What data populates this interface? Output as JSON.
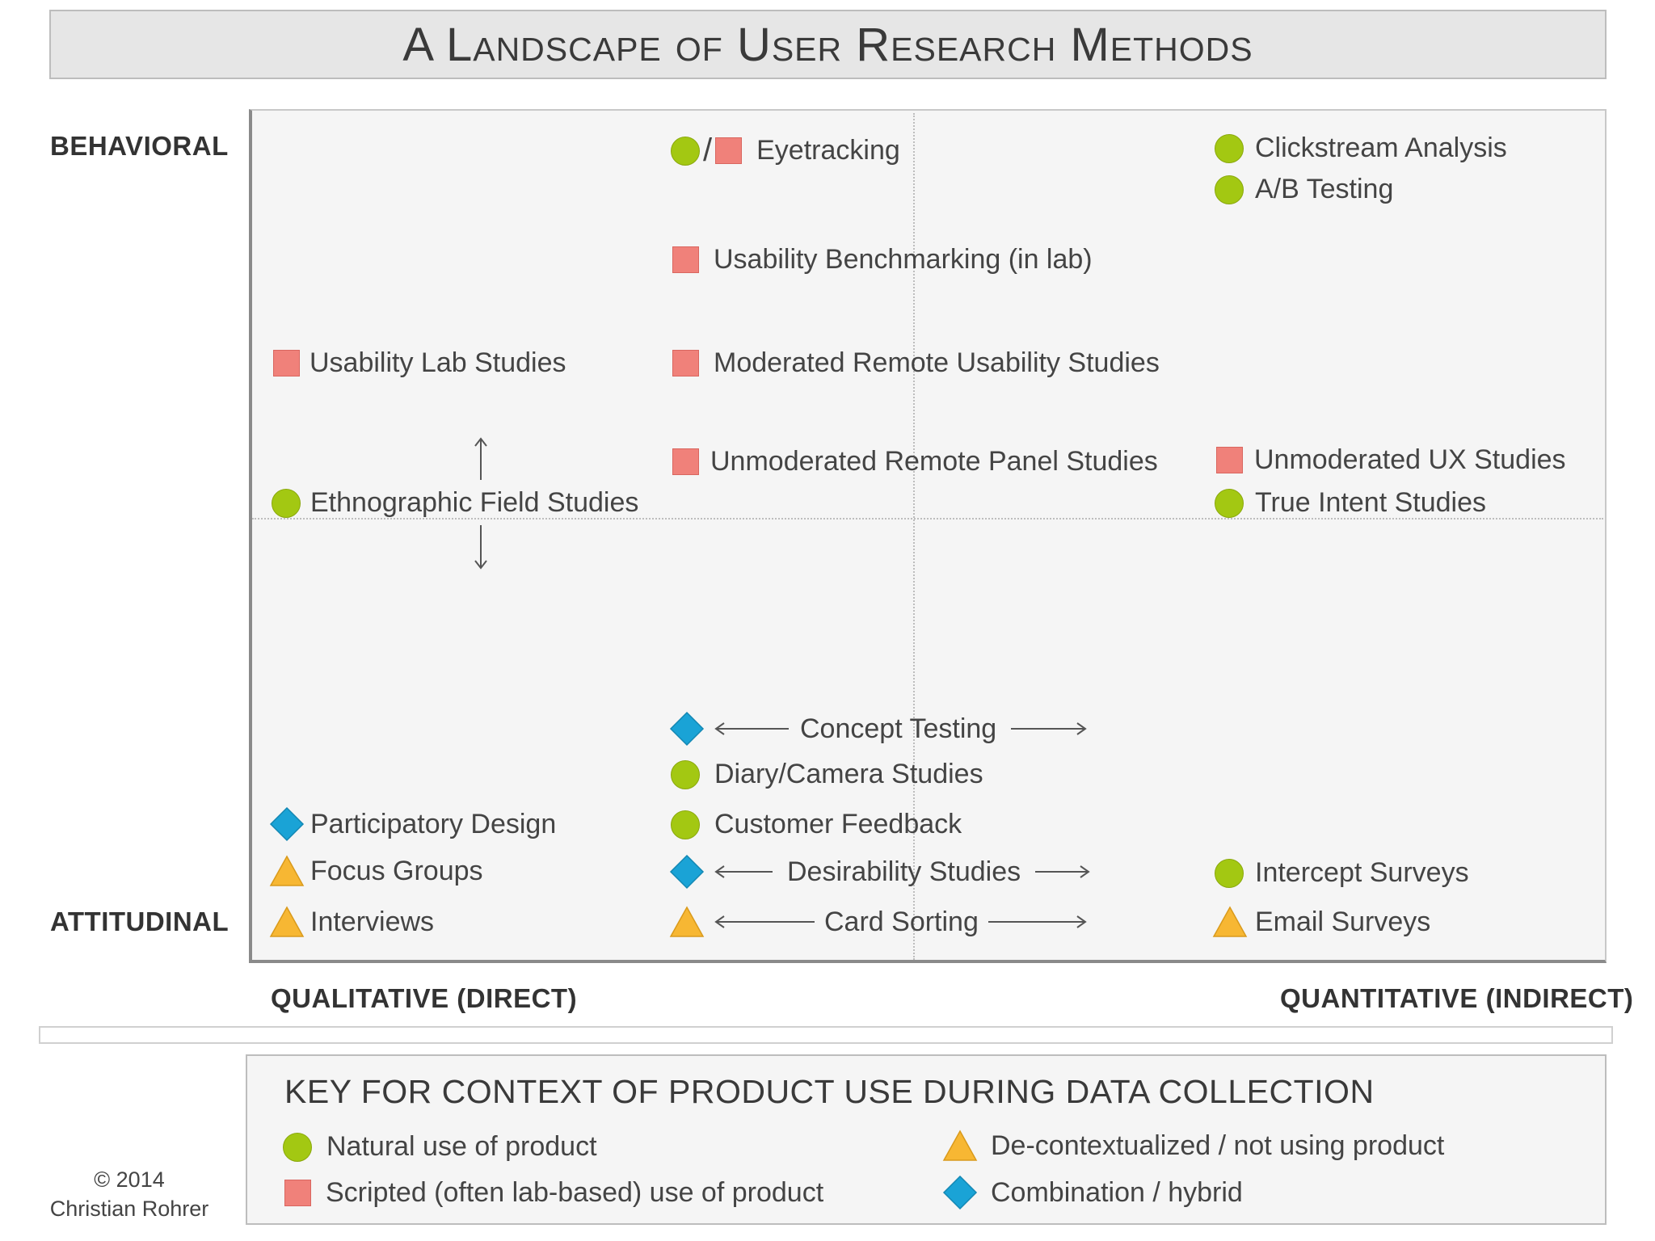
{
  "title": "A Landscape of User Research Methods",
  "axes": {
    "behavioral": "BEHAVIORAL",
    "attitudinal": "ATTITUDINAL",
    "qualitative": "QUALITATIVE (DIRECT)",
    "quantitative": "QUANTITATIVE (INDIRECT)"
  },
  "methods": {
    "eyetracking": "Eyetracking",
    "clickstream": "Clickstream Analysis",
    "ab_testing": "A/B Testing",
    "usability_benchmarking": "Usability Benchmarking (in lab)",
    "usability_lab": "Usability Lab Studies",
    "moderated_remote": "Moderated Remote Usability Studies",
    "unmoderated_panel": "Unmoderated Remote Panel Studies",
    "unmoderated_ux": "Unmoderated UX Studies",
    "ethnographic": "Ethnographic Field Studies",
    "true_intent": "True Intent Studies",
    "concept_testing": "Concept Testing",
    "diary_camera": "Diary/Camera Studies",
    "participatory_design": "Participatory Design",
    "customer_feedback": "Customer Feedback",
    "focus_groups": "Focus Groups",
    "desirability": "Desirability Studies",
    "intercept_surveys": "Intercept Surveys",
    "interviews": "Interviews",
    "card_sorting": "Card Sorting",
    "email_surveys": "Email Surveys"
  },
  "key": {
    "title": "KEY FOR CONTEXT OF PRODUCT USE DURING DATA COLLECTION",
    "natural": "Natural use of product",
    "scripted": "Scripted (often lab-based) use of product",
    "decontextualized": "De-contextualized / not using product",
    "combination": "Combination / hybrid"
  },
  "copyright": {
    "line1": "© 2014",
    "line2": "Christian Rohrer"
  },
  "colors": {
    "natural": "#a3c812",
    "scripted": "#f0817a",
    "decontextualized": "#f7b733",
    "combination": "#1aa3d6"
  },
  "icons": {
    "natural": "green-circle",
    "scripted": "red-square",
    "decontextualized": "orange-triangle",
    "combination": "blue-diamond"
  }
}
